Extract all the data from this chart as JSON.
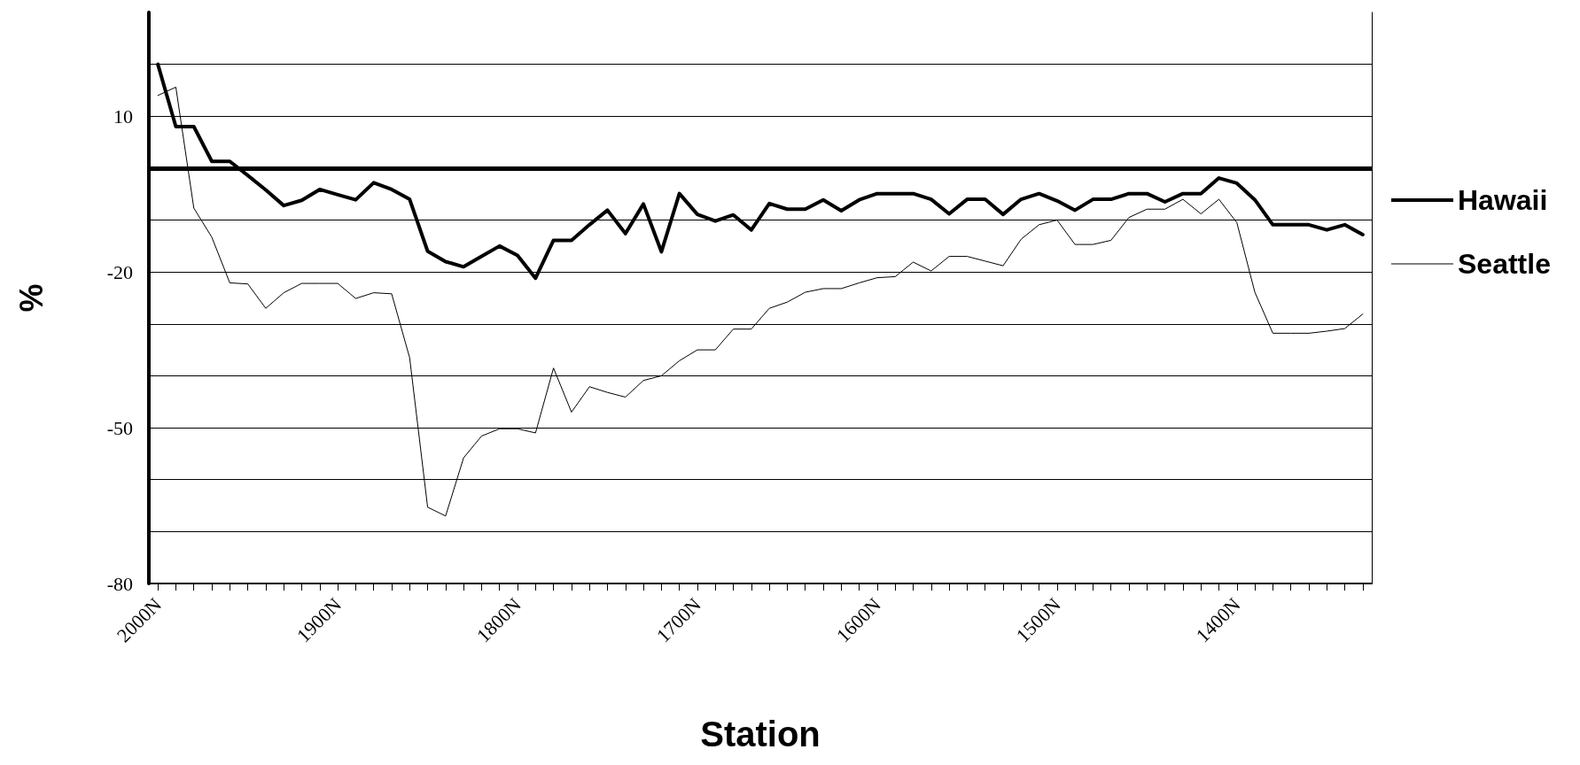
{
  "chart_data": {
    "type": "line",
    "xlabel": "Station",
    "ylabel": "%",
    "categories": [
      "2000N",
      null,
      null,
      null,
      null,
      null,
      null,
      null,
      null,
      null,
      "1900N",
      null,
      null,
      null,
      null,
      null,
      null,
      null,
      null,
      null,
      "1800N",
      null,
      null,
      null,
      null,
      null,
      null,
      null,
      null,
      null,
      "1700N",
      null,
      null,
      null,
      null,
      null,
      null,
      null,
      null,
      null,
      "1600N",
      null,
      null,
      null,
      null,
      null,
      null,
      null,
      null,
      null,
      "1500N",
      null,
      null,
      null,
      null,
      null,
      null,
      null,
      null,
      null,
      "1400N",
      null,
      null,
      null,
      null,
      null,
      null,
      null
    ],
    "series": [
      {
        "name": "Hawaii",
        "color": "#000000",
        "values": [
          20,
          8,
          8,
          1.3,
          1.3,
          -1.4,
          -4.2,
          -7.2,
          -6.2,
          -4.1,
          -5.1,
          -6.1,
          -2.8,
          -4.1,
          -6,
          -16,
          -18,
          -19,
          -17,
          -15,
          -16.8,
          -21.2,
          -13.9,
          -13.9,
          -10.9,
          -8.1,
          -12.6,
          -6.9,
          -16.1,
          -4.9,
          -8.9,
          -10.2,
          -9,
          -11.9,
          -6.8,
          -7.9,
          -7.9,
          -6.1,
          -8.2,
          -6.1,
          -4.9,
          -4.9,
          -4.9,
          -6,
          -8.8,
          -6,
          -6,
          -8.9,
          -6,
          -4.9,
          -6.3,
          -8.1,
          -6,
          -6,
          -4.9,
          -4.9,
          -6.5,
          -4.9,
          -4.9,
          -1.9,
          -2.9,
          -6.1,
          -10.9,
          -10.9,
          -10.9,
          -11.9,
          -10.9,
          -12.8
        ]
      },
      {
        "name": "Seattle",
        "color": "#000000",
        "values": [
          14,
          15.6,
          -7.7,
          -13.3,
          -22.1,
          -22.3,
          -27,
          -24,
          -22.2,
          -22.2,
          -22.2,
          -25.1,
          -24,
          -24.2,
          -36.5,
          -65.3,
          -67,
          -55.8,
          -51.6,
          -50.2,
          -50.2,
          -51,
          -38.5,
          -47,
          -42.1,
          -43.2,
          -44.1,
          -40.9,
          -40,
          -37.1,
          -35,
          -35,
          -31,
          -31,
          -27,
          -25.8,
          -23.9,
          -23.2,
          -23.2,
          -22.1,
          -21.1,
          -20.9,
          -18.1,
          -19.8,
          -17,
          -17,
          -17.9,
          -18.8,
          -13.7,
          -10.9,
          -10,
          -14.7,
          -14.7,
          -13.9,
          -9.5,
          -7.9,
          -7.9,
          -6,
          -8.8,
          -6,
          -10.5,
          -23.9,
          -31.8,
          -31.8,
          -31.8,
          -31.4,
          -30.9,
          -28.1
        ]
      }
    ],
    "ylim": [
      -80,
      30
    ],
    "yticks": [
      -80,
      {
        "value": -70,
        "label": null
      },
      {
        "value": -60,
        "label": null
      },
      -50,
      {
        "value": -40,
        "label": null
      },
      {
        "value": -30,
        "label": null
      },
      -20,
      {
        "value": -10,
        "label": null
      },
      {
        "value": 0,
        "label": null
      },
      10,
      {
        "value": 20,
        "label": null
      }
    ],
    "ref_lines": [
      {
        "axis": "y",
        "value": 0,
        "color": "#000000"
      }
    ],
    "grid": "y",
    "legend": "right",
    "marker": "none",
    "line_style": "solid"
  }
}
